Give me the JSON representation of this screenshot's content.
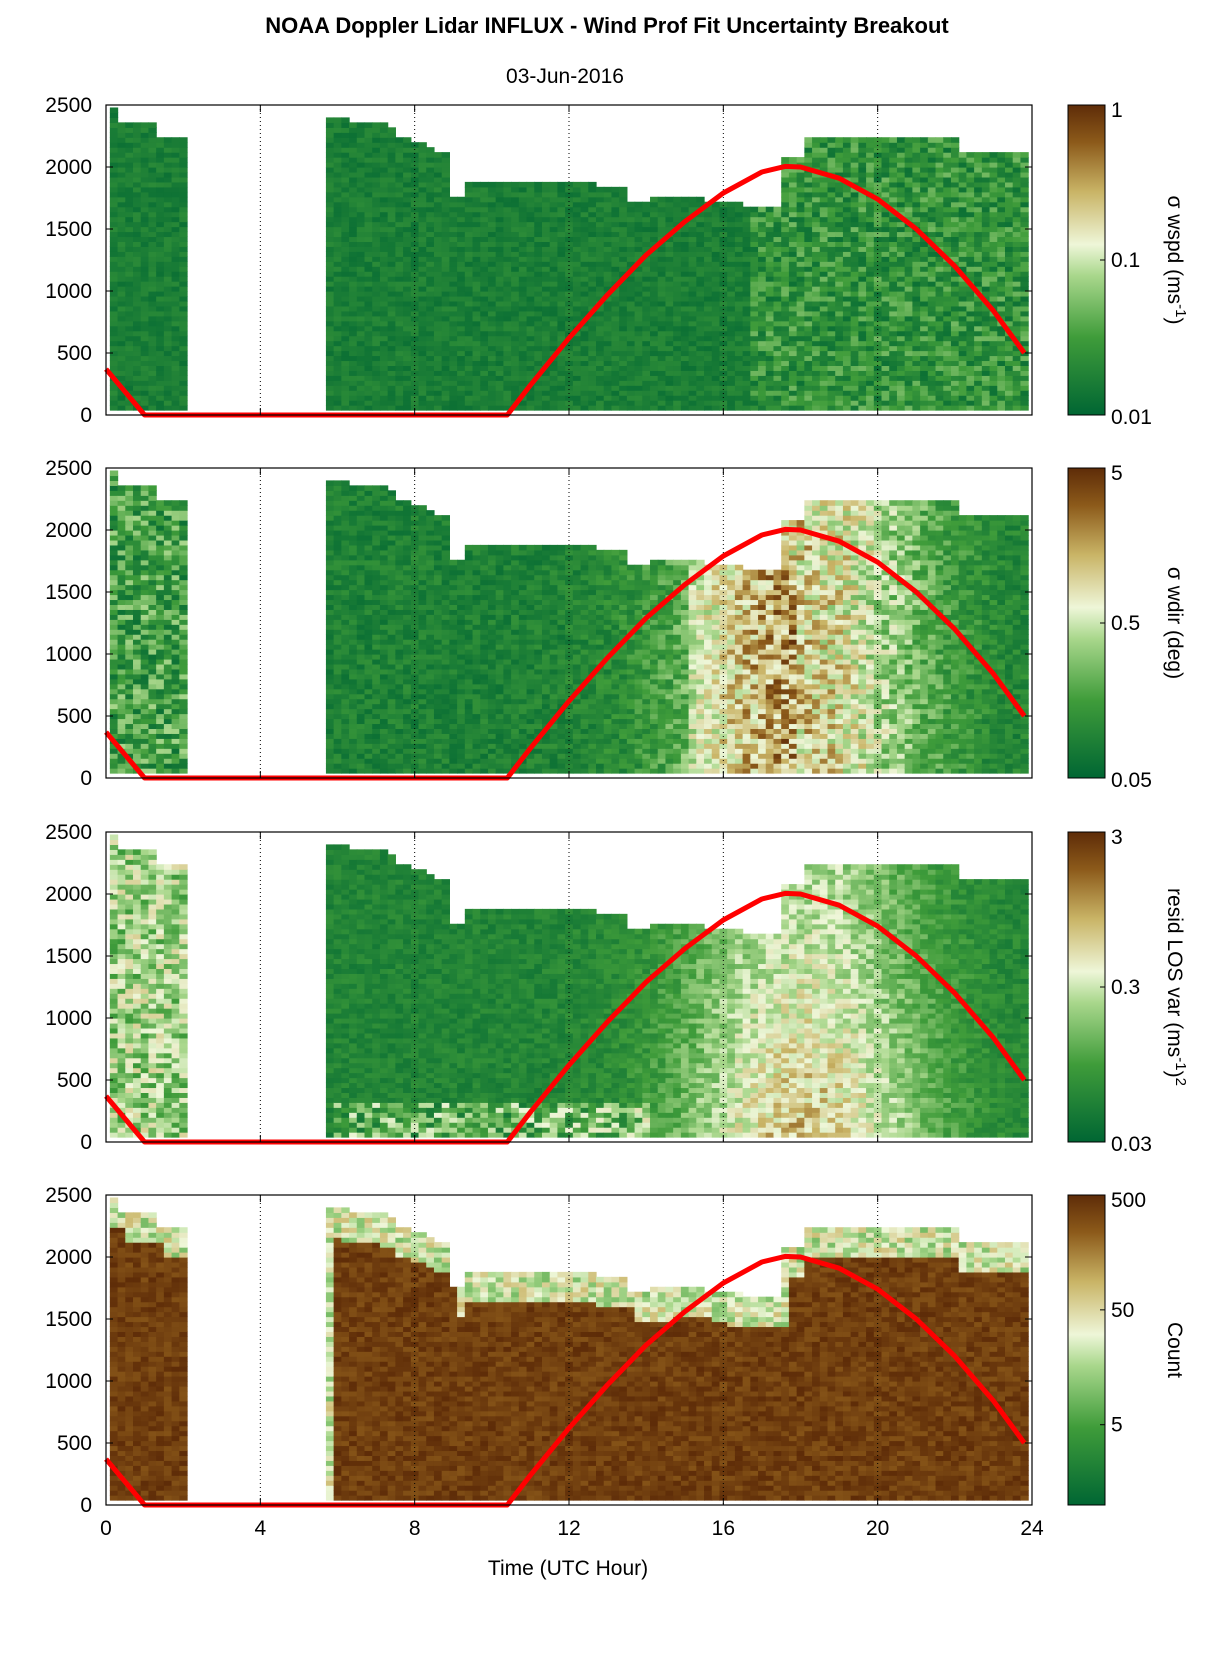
{
  "figure": {
    "title": "NOAA Doppler Lidar INFLUX - Wind Prof Fit Uncertainty Breakout",
    "subtitle": "03-Jun-2016",
    "xlabel": "Time (UTC Hour)"
  },
  "colors": {
    "dark_green": "#006633",
    "light": "#eef6d8",
    "brown": "#5e2c08",
    "sun_line": "#ff0000",
    "grid": "#000000"
  },
  "chart_data": [
    {
      "type": "heatmap",
      "variable": "wspd",
      "colorbar_label": "σ wspd (ms-1)",
      "colorbar_label_main": "σ wspd (ms",
      "colorbar_label_sup": "-1",
      "colorbar_label_end": ")",
      "colorbar_scale": "log",
      "colorbar_ticks": [
        "1",
        "0.1",
        "0.01"
      ],
      "colorbar_tick_values": [
        1,
        0.1,
        0.01
      ],
      "clim": [
        0.01,
        1
      ],
      "x_range": [
        0,
        24
      ],
      "y_range": [
        0,
        2500
      ],
      "x_ticks": [
        0,
        4,
        8,
        12,
        16,
        20,
        24
      ],
      "y_ticks": [
        0,
        500,
        1000,
        1500,
        2000,
        2500
      ],
      "data_coverage": [
        [
          0,
          2.1,
          2350
        ],
        [
          5.8,
          9,
          2350
        ],
        [
          9,
          15,
          1880
        ],
        [
          15,
          17.5,
          1750
        ],
        [
          17.5,
          20,
          2180
        ],
        [
          20,
          23.8,
          2100
        ]
      ]
    },
    {
      "type": "heatmap",
      "variable": "wdir",
      "colorbar_label": "σ wdir (deg)",
      "colorbar_label_main": "σ wdir (deg)",
      "colorbar_label_sup": "",
      "colorbar_label_end": "",
      "colorbar_scale": "log",
      "colorbar_ticks": [
        "5",
        "0.5",
        "0.05"
      ],
      "colorbar_tick_values": [
        5,
        0.5,
        0.05
      ],
      "clim": [
        0.05,
        5
      ],
      "x_range": [
        0,
        24
      ],
      "y_range": [
        0,
        2500
      ],
      "x_ticks": [
        0,
        4,
        8,
        12,
        16,
        20,
        24
      ],
      "y_ticks": [
        0,
        500,
        1000,
        1500,
        2000,
        2500
      ]
    },
    {
      "type": "heatmap",
      "variable": "resid_los_var",
      "colorbar_label": "resid LOS var (ms-1)2",
      "colorbar_label_main": "resid LOS var (ms",
      "colorbar_label_sup": "-1",
      "colorbar_label_end": ")",
      "colorbar_label_sup2": "2",
      "colorbar_scale": "log",
      "colorbar_ticks": [
        "3",
        "0.3",
        "0.03"
      ],
      "colorbar_tick_values": [
        3,
        0.3,
        0.03
      ],
      "clim": [
        0.03,
        3
      ],
      "x_range": [
        0,
        24
      ],
      "y_range": [
        0,
        2500
      ],
      "x_ticks": [
        0,
        4,
        8,
        12,
        16,
        20,
        24
      ],
      "y_ticks": [
        0,
        500,
        1000,
        1500,
        2000,
        2500
      ]
    },
    {
      "type": "heatmap",
      "variable": "count",
      "colorbar_label": "Count",
      "colorbar_label_main": "Count",
      "colorbar_label_sup": "",
      "colorbar_label_end": "",
      "colorbar_scale": "log",
      "colorbar_ticks": [
        "500",
        "50",
        "5"
      ],
      "colorbar_tick_values": [
        500,
        50,
        5
      ],
      "clim": [
        1,
        500
      ],
      "x_range": [
        0,
        24
      ],
      "y_range": [
        0,
        2500
      ],
      "x_ticks": [
        0,
        4,
        8,
        12,
        16,
        20,
        24
      ],
      "y_ticks": [
        0,
        500,
        1000,
        1500,
        2000,
        2500
      ],
      "x_tick_labels": [
        "0",
        "4",
        "8",
        "12",
        "16",
        "20",
        "24"
      ]
    }
  ],
  "overlay_line": {
    "type": "line",
    "color": "#ff0000",
    "x": [
      0,
      1,
      10.4,
      11,
      12,
      13,
      14,
      15,
      16,
      17,
      17.6,
      18,
      19,
      20,
      21,
      22,
      23,
      23.8
    ],
    "y": [
      370,
      0,
      0,
      240,
      620,
      970,
      1290,
      1560,
      1790,
      1960,
      2005,
      2000,
      1910,
      1740,
      1500,
      1200,
      840,
      500
    ]
  },
  "y_tick_labels": [
    "0",
    "500",
    "1000",
    "1500",
    "2000",
    "2500"
  ]
}
